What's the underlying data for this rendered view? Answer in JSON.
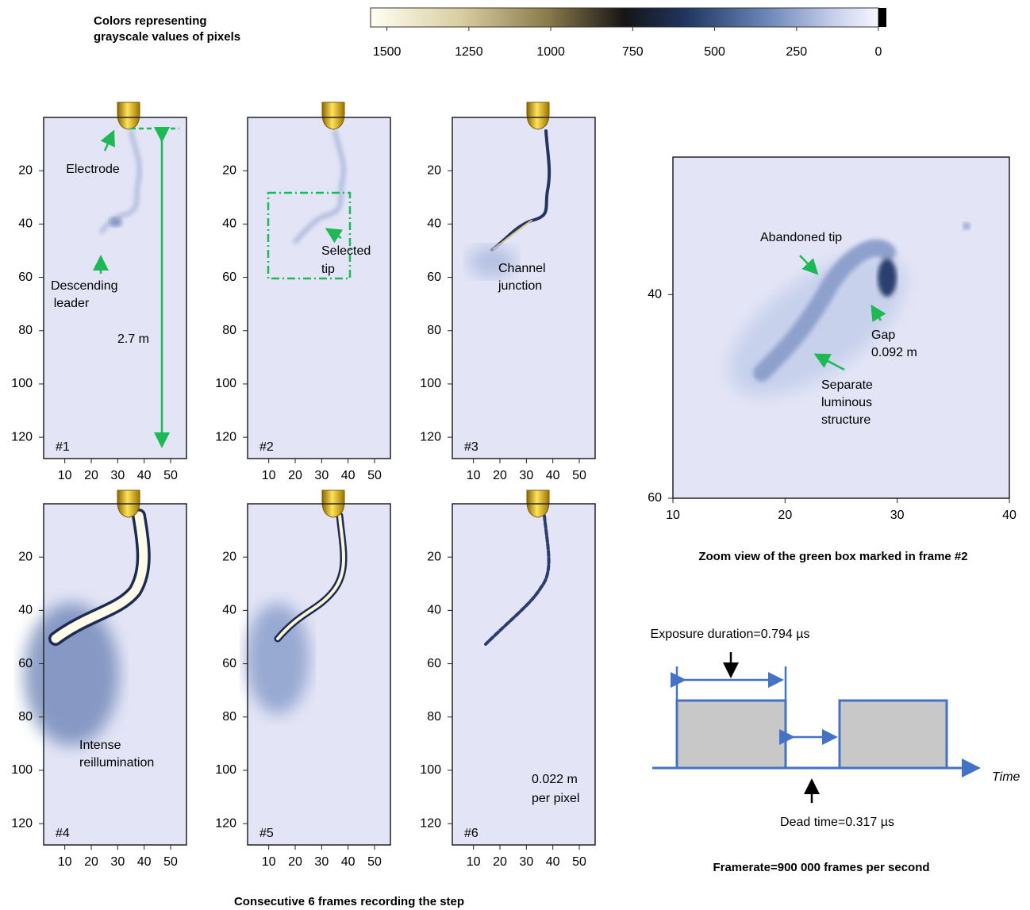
{
  "colorbar": {
    "title_lines": [
      "Colors representing",
      "grayscale values of pixels"
    ],
    "lim": [
      1550,
      0
    ],
    "ticks": [
      1500,
      1250,
      1000,
      750,
      500,
      250,
      0
    ]
  },
  "frames": [
    {
      "label": "#1",
      "xlim": [
        2,
        56
      ],
      "ylim": [
        0,
        128
      ],
      "xticks": [
        10,
        20,
        30,
        40,
        50
      ],
      "yticks": [
        20,
        40,
        60,
        80,
        100,
        120
      ],
      "notes": [
        "Electrode",
        "Descending",
        "leader",
        "2.7 m"
      ]
    },
    {
      "label": "#2",
      "xlim": [
        2,
        56
      ],
      "ylim": [
        0,
        128
      ],
      "xticks": [
        10,
        20,
        30,
        40,
        50
      ],
      "yticks": [
        20,
        40,
        60,
        80,
        100,
        120
      ],
      "notes": [
        "Selected",
        "tip"
      ]
    },
    {
      "label": "#3",
      "xlim": [
        2,
        56
      ],
      "ylim": [
        0,
        128
      ],
      "xticks": [
        10,
        20,
        30,
        40,
        50
      ],
      "yticks": [
        20,
        40,
        60,
        80,
        100,
        120
      ],
      "notes": [
        "Channel",
        "junction"
      ]
    },
    {
      "label": "#4",
      "xlim": [
        2,
        56
      ],
      "ylim": [
        0,
        128
      ],
      "xticks": [
        10,
        20,
        30,
        40,
        50
      ],
      "yticks": [
        20,
        40,
        60,
        80,
        100,
        120
      ],
      "notes": [
        "Intense",
        "reillumination"
      ]
    },
    {
      "label": "#5",
      "xlim": [
        2,
        56
      ],
      "ylim": [
        0,
        128
      ],
      "xticks": [
        10,
        20,
        30,
        40,
        50
      ],
      "yticks": [
        20,
        40,
        60,
        80,
        100,
        120
      ],
      "notes": []
    },
    {
      "label": "#6",
      "xlim": [
        2,
        56
      ],
      "ylim": [
        0,
        128
      ],
      "xticks": [
        10,
        20,
        30,
        40,
        50
      ],
      "yticks": [
        20,
        40,
        60,
        80,
        100,
        120
      ],
      "notes": [
        "0.022 m",
        "per pixel"
      ]
    }
  ],
  "frames_caption": "Consecutive 6 frames recording the step",
  "zoom": {
    "xlim": [
      10,
      40
    ],
    "ylim": [
      26.5,
      60
    ],
    "xticks": [
      10,
      20,
      30,
      40
    ],
    "yticks": [
      40,
      60
    ],
    "notes": [
      "Abandoned tip",
      "Gap",
      "0.092 m",
      "Separate",
      "luminous",
      "structure"
    ],
    "caption": "Zoom view of the green box marked in frame #2"
  },
  "timing": {
    "exposure_label": "Exposure duration=0.794 µs",
    "dead_time_label": "Dead time=0.317 µs",
    "axis_label": "Time",
    "caption": "Framerate=900 000 frames per second"
  }
}
